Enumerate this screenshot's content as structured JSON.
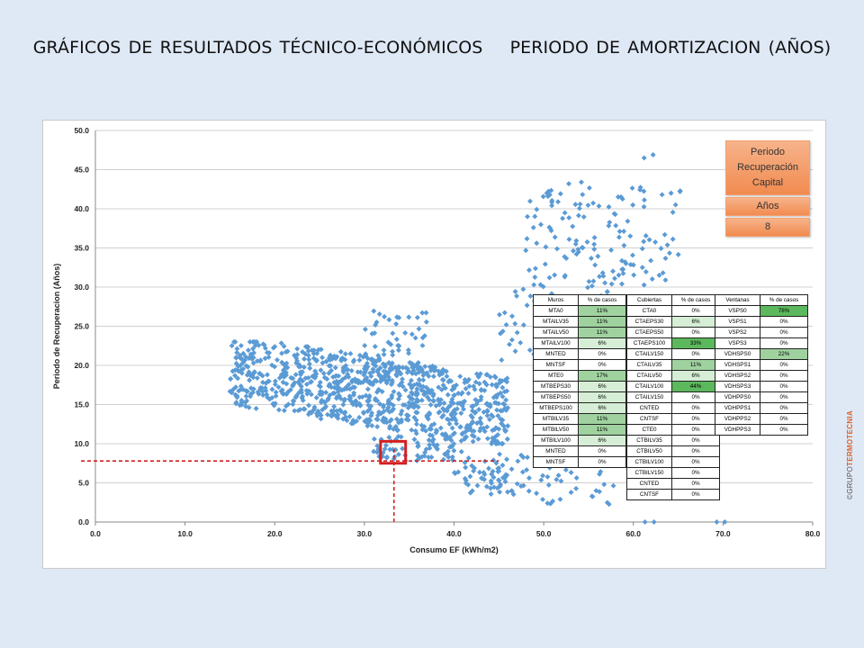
{
  "title": {
    "left": "GRÁFICOS DE RESULTADOS TÉCNICO-ECONÓMICOS",
    "right": "PERIODO DE AMORTIZACION (AÑOS)"
  },
  "legend": {
    "title": "Periodo Recuperación Capital",
    "unit": "Años",
    "value": "8"
  },
  "copyright": {
    "prefix": "©GRUPO",
    "brand": "TERMOTECNIA"
  },
  "colors": {
    "points": "#5b9bd5",
    "marker": "#d42020",
    "band_dark": "#5cb85c",
    "band_mid": "#9fd29f",
    "band_light": "#d6eed6"
  },
  "tables": {
    "muros": {
      "headers": [
        "Muros",
        "% de casos"
      ],
      "rows": [
        [
          "MTA0",
          "11%"
        ],
        [
          "MTAILV35",
          "11%"
        ],
        [
          "MTAILV50",
          "11%"
        ],
        [
          "MTAILV100",
          "6%"
        ],
        [
          "MNTED",
          "0%"
        ],
        [
          "MNTSF",
          "0%"
        ],
        [
          "MTE0",
          "17%"
        ],
        [
          "MTBEPS30",
          "6%"
        ],
        [
          "MTBEPS50",
          "6%"
        ],
        [
          "MTBEPS100",
          "6%"
        ],
        [
          "MTBILV35",
          "11%"
        ],
        [
          "MTBILV50",
          "11%"
        ],
        [
          "MTBILV100",
          "6%"
        ],
        [
          "MNTED",
          "0%"
        ],
        [
          "MNTSF",
          "0%"
        ]
      ]
    },
    "cubiertas": {
      "headers": [
        "Cubiertas",
        "% de casos"
      ],
      "rows": [
        [
          "CTA0",
          "0%"
        ],
        [
          "CTAEPS30",
          "6%"
        ],
        [
          "CTAEPS50",
          "0%"
        ],
        [
          "CTAEPS100",
          "33%"
        ],
        [
          "CTAILV150",
          "0%"
        ],
        [
          "CTAILV35",
          "11%"
        ],
        [
          "CTAILV50",
          "6%"
        ],
        [
          "CTAILV100",
          "44%"
        ],
        [
          "CTAILV150",
          "0%"
        ],
        [
          "CNTED",
          "0%"
        ],
        [
          "CNTSF",
          "0%"
        ],
        [
          "CTE0",
          "0%"
        ],
        [
          "CTBILV35",
          "0%"
        ],
        [
          "CTBILV50",
          "0%"
        ],
        [
          "CTBILV100",
          "0%"
        ],
        [
          "CTBILV150",
          "0%"
        ],
        [
          "CNTED",
          "0%"
        ],
        [
          "CNTSF",
          "0%"
        ]
      ]
    },
    "ventanas": {
      "headers": [
        "Ventanas",
        "% de casos"
      ],
      "rows": [
        [
          "VSPS0",
          "78%"
        ],
        [
          "VSPS1",
          "0%"
        ],
        [
          "VSPS2",
          "0%"
        ],
        [
          "VSPS3",
          "0%"
        ],
        [
          "VDHSPS0",
          "22%"
        ],
        [
          "VDHSPS1",
          "0%"
        ],
        [
          "VDHSPS2",
          "0%"
        ],
        [
          "VDHSPS3",
          "0%"
        ],
        [
          "VDHPPS0",
          "0%"
        ],
        [
          "VDHPPS1",
          "0%"
        ],
        [
          "VDHPPS2",
          "0%"
        ],
        [
          "VDHPPS3",
          "0%"
        ]
      ]
    }
  },
  "chart_data": {
    "type": "scatter",
    "title": "",
    "xlabel": "Consumo EF (kWh/m2)",
    "ylabel": "Periodo de Recuperacion (Años)",
    "xlim": [
      0,
      80
    ],
    "ylim": [
      0,
      50
    ],
    "x_ticks": [
      "0.0",
      "10.0",
      "20.0",
      "30.0",
      "40.0",
      "50.0",
      "60.0",
      "70.0",
      "80.0"
    ],
    "y_ticks": [
      "0.0",
      "5.0",
      "10.0",
      "15.0",
      "20.0",
      "25.0",
      "30.0",
      "35.0",
      "40.0",
      "45.0",
      "50.0"
    ],
    "grid": "horizontal",
    "reference": {
      "x": 33.3,
      "y": 7.8,
      "box_x": [
        31.8,
        34.6
      ],
      "box_y": [
        7.5,
        10.3
      ]
    },
    "clusters": [
      {
        "xr": [
          15,
          46
        ],
        "yr": [
          10,
          23
        ],
        "count": 900,
        "shape": "diagonal",
        "seed": 11
      },
      {
        "xr": [
          30,
          37
        ],
        "yr": [
          17,
          27
        ],
        "count": 70,
        "seed": 12
      },
      {
        "xr": [
          31,
          40
        ],
        "yr": [
          7.8,
          11
        ],
        "count": 70,
        "seed": 13
      },
      {
        "xr": [
          40,
          49
        ],
        "yr": [
          3.5,
          9
        ],
        "count": 70,
        "seed": 14
      },
      {
        "xr": [
          45,
          58
        ],
        "yr": [
          20,
          32
        ],
        "count": 70,
        "seed": 15
      },
      {
        "xr": [
          48,
          66
        ],
        "yr": [
          30,
          43
        ],
        "count": 130,
        "seed": 16
      },
      {
        "xr": [
          48,
          59
        ],
        "yr": [
          2,
          8
        ],
        "count": 30,
        "seed": 17
      }
    ],
    "points": [
      [
        61.2,
        46.5
      ],
      [
        62.2,
        46.9
      ],
      [
        52.8,
        43.2
      ],
      [
        54.2,
        43.4
      ],
      [
        65.2,
        42.2
      ],
      [
        63.2,
        41.8
      ],
      [
        64.2,
        42.0
      ],
      [
        61.3,
        0.0
      ],
      [
        62.3,
        0.0
      ],
      [
        69.3,
        0.0
      ],
      [
        70.2,
        0.0
      ]
    ]
  }
}
